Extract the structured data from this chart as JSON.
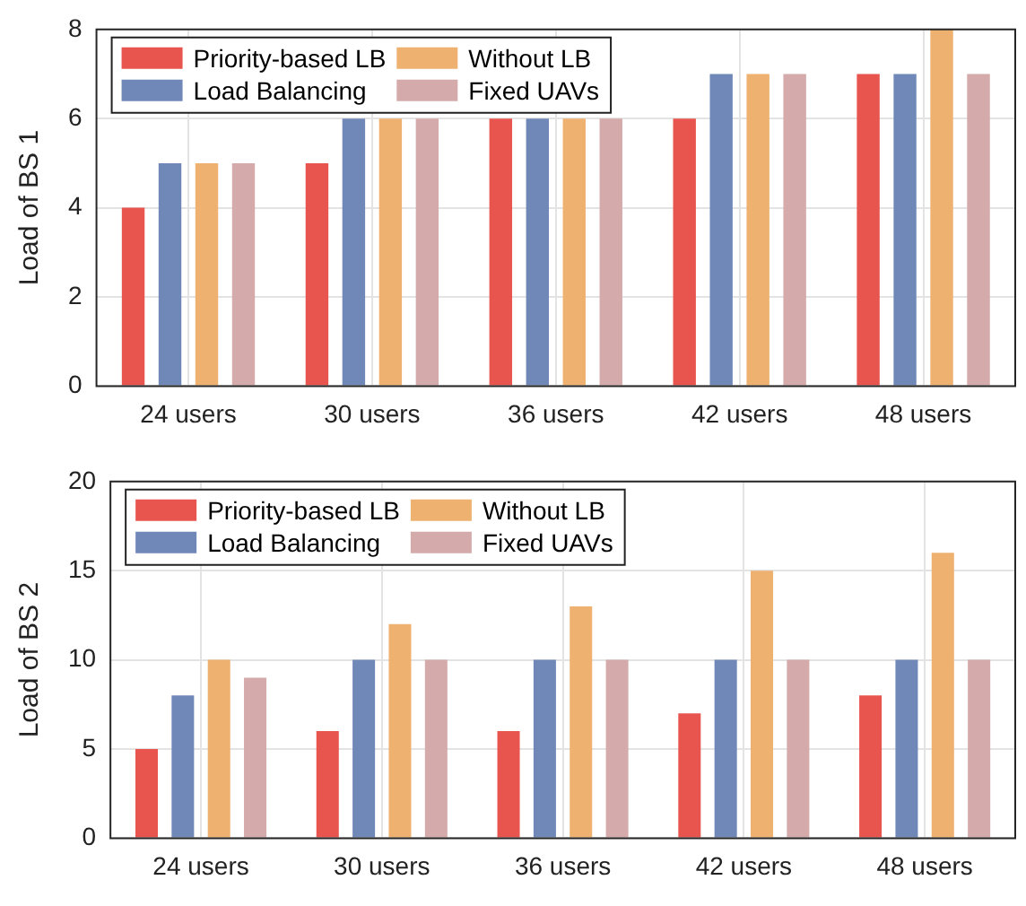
{
  "chart_data": [
    {
      "type": "bar",
      "ylabel": "Load of BS 1",
      "categories": [
        "24 users",
        "30 users",
        "36 users",
        "42 users",
        "48 users"
      ],
      "series": [
        {
          "name": "Priority-based LB",
          "color": "#e8554e",
          "values": [
            4,
            5,
            6,
            6,
            7
          ]
        },
        {
          "name": "Load Balancing",
          "color": "#6f88b8",
          "values": [
            5,
            6,
            6,
            7,
            7
          ]
        },
        {
          "name": "Without LB",
          "color": "#eeb170",
          "values": [
            5,
            6,
            6,
            7,
            8
          ]
        },
        {
          "name": "Fixed UAVs",
          "color": "#d4aaaa",
          "values": [
            5,
            6,
            6,
            7,
            7
          ]
        }
      ],
      "ylim": [
        0,
        8
      ],
      "yticks": [
        0,
        2,
        4,
        6,
        8
      ],
      "grid": true,
      "legend": "top left"
    },
    {
      "type": "bar",
      "ylabel": "Load of BS 2",
      "categories": [
        "24 users",
        "30 users",
        "36 users",
        "42 users",
        "48 users"
      ],
      "series": [
        {
          "name": "Priority-based LB",
          "color": "#e8554e",
          "values": [
            5,
            6,
            6,
            7,
            8
          ]
        },
        {
          "name": "Load Balancing",
          "color": "#6f88b8",
          "values": [
            8,
            10,
            10,
            10,
            10
          ]
        },
        {
          "name": "Without LB",
          "color": "#eeb170",
          "values": [
            10,
            12,
            13,
            15,
            16
          ]
        },
        {
          "name": "Fixed UAVs",
          "color": "#d4aaaa",
          "values": [
            9,
            10,
            10,
            10,
            10
          ]
        }
      ],
      "ylim": [
        0,
        20
      ],
      "yticks": [
        0,
        5,
        10,
        15,
        20
      ],
      "grid": true,
      "legend": "top left"
    }
  ]
}
